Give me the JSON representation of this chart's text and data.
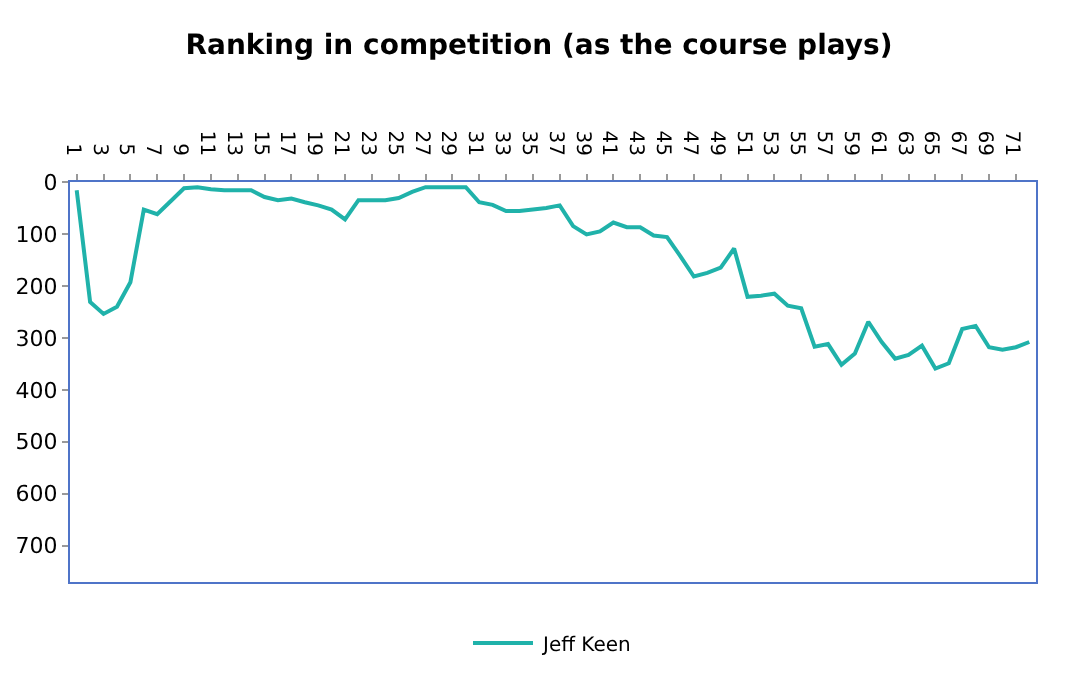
{
  "chart_data": {
    "type": "line",
    "title": "Ranking in competition (as the course plays)",
    "categories": [
      "1",
      null,
      "3",
      null,
      "5",
      null,
      "7",
      null,
      "9",
      null,
      "11",
      null,
      "13",
      null,
      "15",
      null,
      "17",
      null,
      "19",
      null,
      "21",
      null,
      "23",
      null,
      "25",
      null,
      "27",
      null,
      "29",
      null,
      "31",
      null,
      "33",
      null,
      "35",
      null,
      "37",
      null,
      "39",
      null,
      "41",
      null,
      "43",
      null,
      "45",
      null,
      "47",
      null,
      "49",
      null,
      "51",
      null,
      "53",
      null,
      "55",
      null,
      "57",
      null,
      "59",
      null,
      "61",
      null,
      "63",
      null,
      "65",
      null,
      "67",
      null,
      "69",
      null,
      "71",
      null
    ],
    "series": [
      {
        "name": "Jeff Keen",
        "color": "#20b2aa",
        "values": [
          16,
          231,
          254,
          240,
          193,
          53,
          62,
          37,
          12,
          10,
          14,
          16,
          16,
          16,
          29,
          35,
          32,
          39,
          45,
          53,
          72,
          35,
          35,
          35,
          31,
          19,
          10,
          10,
          10,
          10,
          39,
          44,
          56,
          56,
          53,
          50,
          45,
          85,
          101,
          95,
          78,
          87,
          87,
          103,
          106,
          143,
          182,
          175,
          165,
          128,
          221,
          219,
          215,
          238,
          243,
          317,
          312,
          352,
          330,
          269,
          308,
          340,
          333,
          315,
          359,
          349,
          283,
          277,
          318,
          323,
          318,
          308
        ]
      }
    ],
    "ylim": [
      770,
      0
    ],
    "yticks": [
      0,
      100,
      200,
      300,
      400,
      500,
      600,
      700
    ],
    "grid": false,
    "legend": "bottom",
    "marker": "none",
    "line_style": "solid"
  }
}
